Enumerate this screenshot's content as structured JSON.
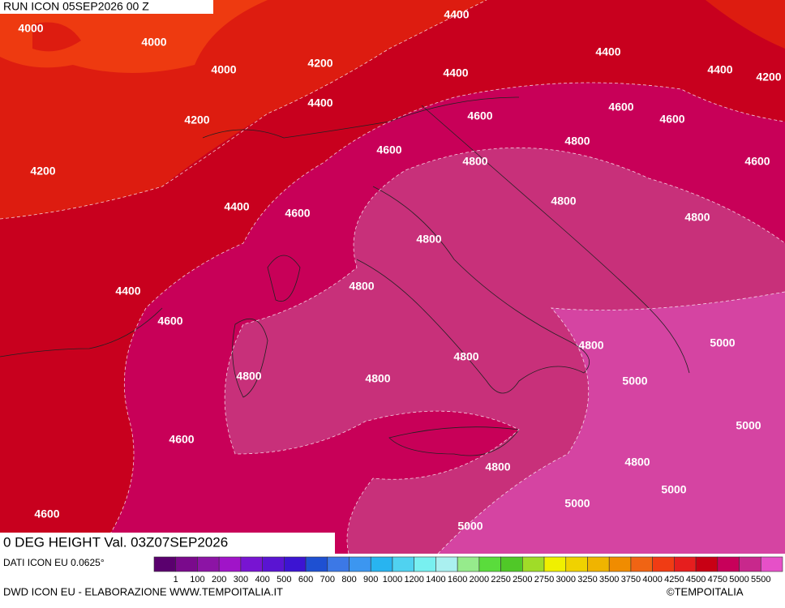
{
  "header": {
    "title": "RUN ICON 05SEP2026 00 Z"
  },
  "map": {
    "title": "0 DEG HEIGHT Val. 03Z07SEP2026",
    "contour_labels": [
      "4000",
      "4000",
      "4000",
      "4200",
      "4400",
      "4400",
      "4400",
      "4200",
      "4400",
      "4400",
      "4200",
      "4600",
      "4600",
      "4600",
      "4200",
      "4600",
      "4800",
      "4800",
      "4600",
      "4400",
      "4600",
      "4800",
      "4800",
      "4800",
      "4800",
      "4400",
      "4600",
      "5000",
      "4800",
      "4800",
      "4800",
      "4800",
      "5000",
      "5000",
      "4600",
      "4800",
      "4800",
      "5000",
      "5000",
      "4600",
      "5000"
    ]
  },
  "legend": {
    "source": "DATI ICON EU 0.0625°",
    "colors": [
      "#5a006e",
      "#7a0a8c",
      "#8c14a5",
      "#a014c8",
      "#7814d2",
      "#5a14d2",
      "#3c14d2",
      "#1e50d2",
      "#3c78e6",
      "#3c96f0",
      "#28b4f0",
      "#50d2f0",
      "#78f0f0",
      "#aaf0f0",
      "#96eb8c",
      "#5adc3c",
      "#50c828",
      "#a0dc28",
      "#f0f000",
      "#f0d200",
      "#f0b400",
      "#f08c00",
      "#f06414",
      "#f03c14",
      "#e61e1e",
      "#c80014",
      "#c8005a",
      "#c8288c",
      "#e650c8"
    ],
    "labels": [
      "1",
      "100",
      "200",
      "300",
      "400",
      "500",
      "600",
      "700",
      "800",
      "900",
      "1000",
      "1200",
      "1400",
      "1600",
      "2000",
      "2250",
      "2500",
      "2750",
      "3000",
      "3250",
      "3500",
      "3750",
      "4000",
      "4250",
      "4500",
      "4750",
      "5000",
      "5500"
    ]
  },
  "footer": {
    "credit": "DWD ICON EU - ELABORAZIONE WWW.TEMPOITALIA.IT",
    "brand": "©TEMPOITALIA"
  }
}
